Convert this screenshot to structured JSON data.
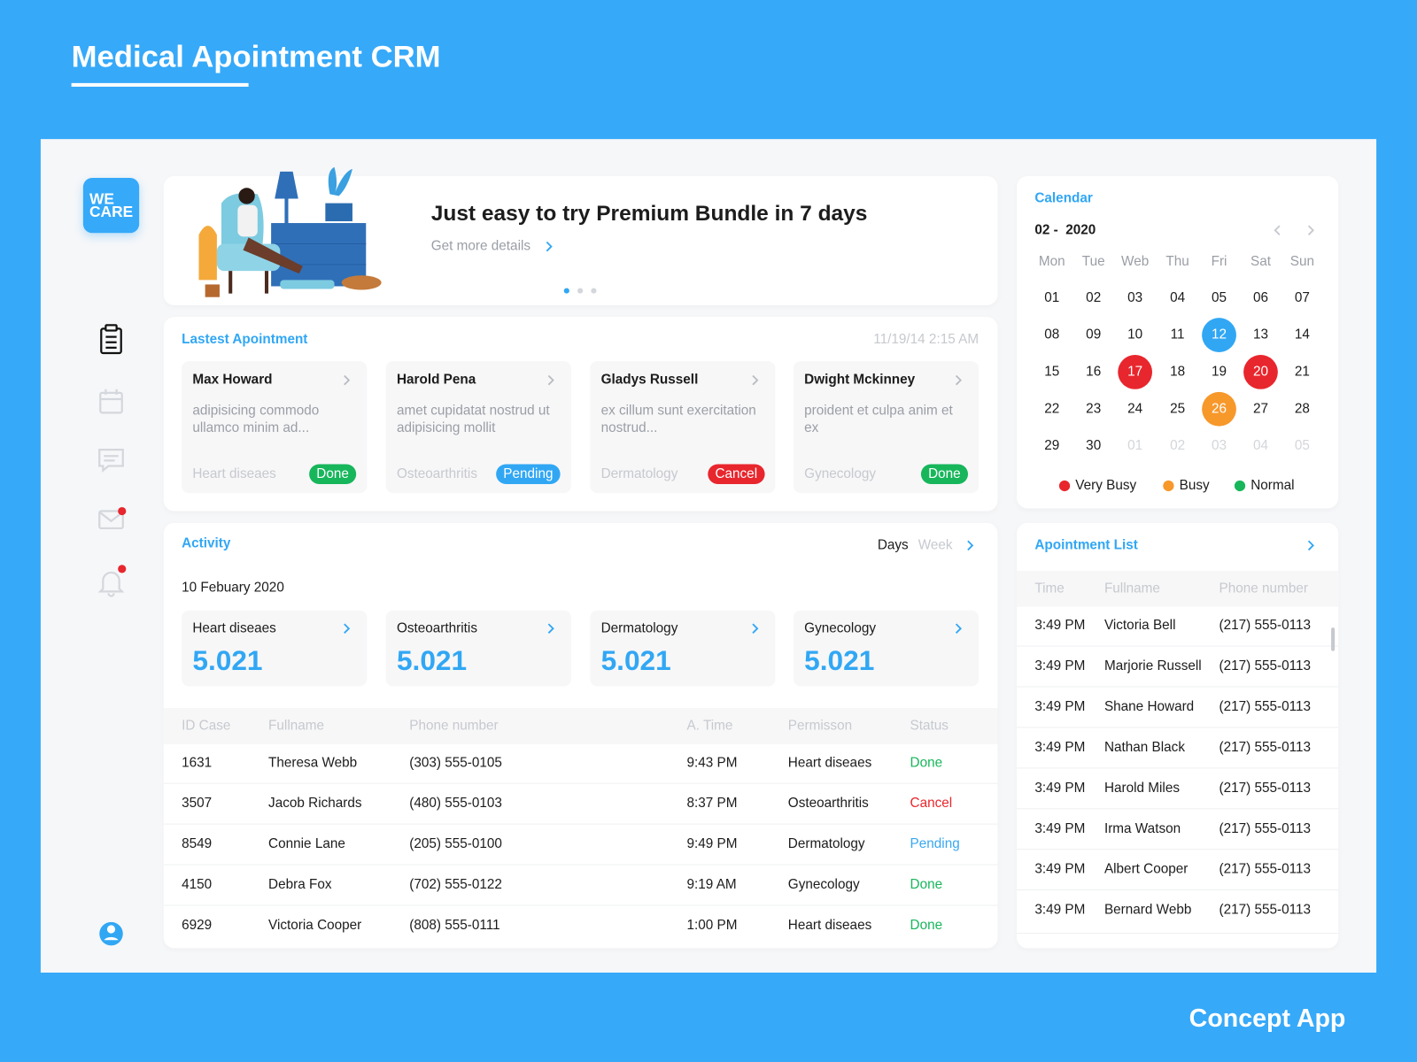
{
  "header": {
    "title": "Medical Apointment CRM",
    "footer": "Concept App"
  },
  "logo": [
    "WE",
    "CARE"
  ],
  "banner": {
    "title": "Just easy to try Premium Bundle in 7 days",
    "link": "Get more details"
  },
  "latest": {
    "title": "Lastest Apointment",
    "time": "11/19/14 2:15 AM",
    "cards": [
      {
        "name": "Max Howard",
        "text": "adipisicing commodo ullamco minim ad...",
        "category": "Heart diseaes",
        "status": "Done",
        "status_color": "#17b65b"
      },
      {
        "name": "Harold Pena",
        "text": "amet cupidatat nostrud ut adipisicing mollit",
        "category": "Osteoarthritis",
        "status": "Pending",
        "status_color": "#31a7f4"
      },
      {
        "name": "Gladys Russell",
        "text": "ex cillum sunt exercitation nostrud...",
        "category": "Dermatology",
        "status": "Cancel",
        "status_color": "#e8262d"
      },
      {
        "name": "Dwight Mckinney",
        "text": "proident et culpa anim et ex",
        "category": "Gynecology",
        "status": "Done",
        "status_color": "#17b65b"
      }
    ]
  },
  "activity": {
    "title": "Activity",
    "tabs": [
      "Days",
      "Week"
    ],
    "date": "10 Febuary 2020",
    "stats": [
      {
        "label": "Heart diseaes",
        "value": "5.021"
      },
      {
        "label": "Osteoarthritis",
        "value": "5.021"
      },
      {
        "label": "Dermatology",
        "value": "5.021"
      },
      {
        "label": "Gynecology",
        "value": "5.021"
      }
    ],
    "table": {
      "columns": [
        "ID Case",
        "Fullname",
        "Phone number",
        "A. Time",
        "Permisson",
        "Status"
      ],
      "rows": [
        {
          "cells": [
            "1631",
            "Theresa Webb",
            "(303) 555-0105",
            "9:43 PM",
            "Heart diseaes",
            "Done"
          ],
          "status_color": "#17b65b"
        },
        {
          "cells": [
            "3507",
            "Jacob Richards",
            "(480) 555-0103",
            "8:37 PM",
            "Osteoarthritis",
            "Cancel"
          ],
          "status_color": "#e8262d"
        },
        {
          "cells": [
            "8549",
            "Connie Lane",
            "(205) 555-0100",
            "9:49 PM",
            "Dermatology",
            "Pending"
          ],
          "status_color": "#37a7f1"
        },
        {
          "cells": [
            "4150",
            "Debra Fox",
            "(702) 555-0122",
            "9:19 AM",
            "Gynecology",
            "Done"
          ],
          "status_color": "#17b65b"
        },
        {
          "cells": [
            "6929",
            "Victoria Cooper",
            "(808) 555-0111",
            "1:00 PM",
            "Heart diseaes",
            "Done"
          ],
          "status_color": "#17b65b"
        }
      ]
    }
  },
  "calendar": {
    "title": "Calendar",
    "month": "02 -  2020",
    "weekdays": [
      "Mon",
      "Tue",
      "Web",
      "Thu",
      "Fri",
      "Sat",
      "Sun"
    ],
    "days": [
      {
        "label": "01"
      },
      {
        "label": "02"
      },
      {
        "label": "03"
      },
      {
        "label": "04"
      },
      {
        "label": "05"
      },
      {
        "label": "06"
      },
      {
        "label": "07"
      },
      {
        "label": "08"
      },
      {
        "label": "09"
      },
      {
        "label": "10"
      },
      {
        "label": "11"
      },
      {
        "label": "12",
        "color": "#31a7f4"
      },
      {
        "label": "13"
      },
      {
        "label": "14"
      },
      {
        "label": "15"
      },
      {
        "label": "16"
      },
      {
        "label": "17",
        "color": "#e8262d"
      },
      {
        "label": "18"
      },
      {
        "label": "19"
      },
      {
        "label": "20",
        "color": "#e8262d"
      },
      {
        "label": "21"
      },
      {
        "label": "22"
      },
      {
        "label": "23"
      },
      {
        "label": "24"
      },
      {
        "label": "25"
      },
      {
        "label": "26",
        "color": "#f7982b"
      },
      {
        "label": "27"
      },
      {
        "label": "28"
      },
      {
        "label": "29"
      },
      {
        "label": "30"
      },
      {
        "label": "01",
        "muted": true
      },
      {
        "label": "02",
        "muted": true
      },
      {
        "label": "03",
        "muted": true
      },
      {
        "label": "04",
        "muted": true
      },
      {
        "label": "05",
        "muted": true
      }
    ],
    "legend": [
      {
        "label": "Very Busy",
        "color": "#e8262d"
      },
      {
        "label": "Busy",
        "color": "#f7982b"
      },
      {
        "label": "Normal",
        "color": "#17b65b"
      }
    ]
  },
  "appointments": {
    "title": "Apointment List",
    "columns": [
      "Time",
      "Fullname",
      "Phone number"
    ],
    "rows": [
      [
        "3:49 PM",
        "Victoria Bell",
        "(217) 555-0113"
      ],
      [
        "3:49 PM",
        "Marjorie Russell",
        "(217) 555-0113"
      ],
      [
        "3:49 PM",
        "Shane Howard",
        "(217) 555-0113"
      ],
      [
        "3:49 PM",
        "Nathan Black",
        "(217) 555-0113"
      ],
      [
        "3:49 PM",
        "Harold Miles",
        "(217) 555-0113"
      ],
      [
        "3:49 PM",
        "Irma Watson",
        "(217) 555-0113"
      ],
      [
        "3:49 PM",
        "Albert Cooper",
        "(217) 555-0113"
      ],
      [
        "3:49 PM",
        "Bernard Webb",
        "(217) 555-0113"
      ]
    ]
  }
}
